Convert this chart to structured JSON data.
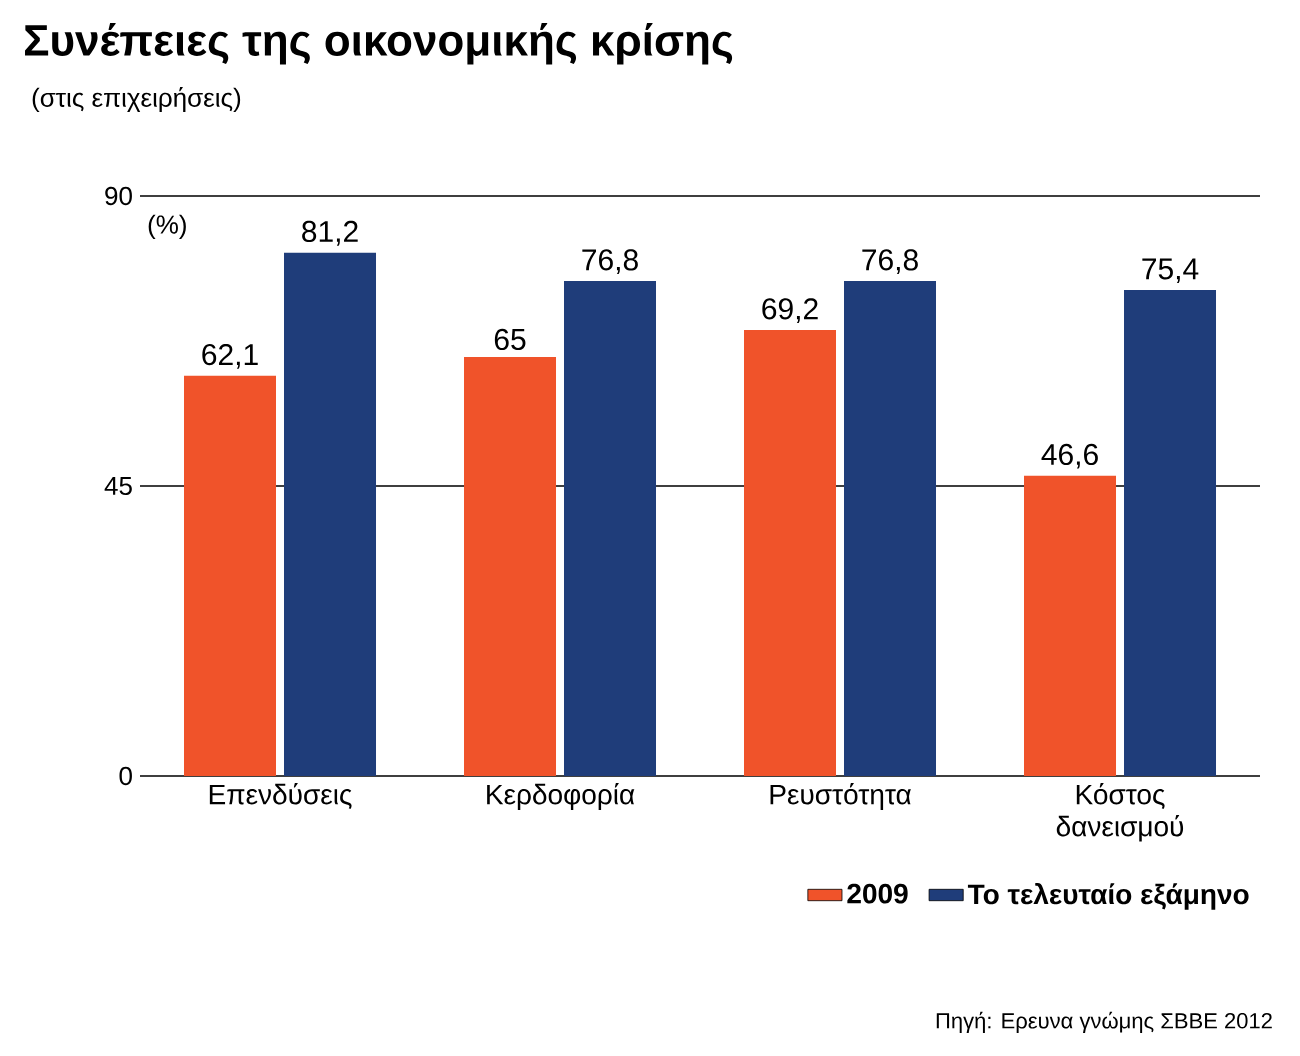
{
  "chart_data": {
    "type": "bar",
    "title": "Συνέπειες της οικονομικής κρίσης",
    "subtitle": "(στις επιχειρήσεις)",
    "ylabel": "(%)",
    "categories": [
      "Επενδύσεις",
      "Κερδοφορία",
      "Ρευστότητα",
      "Κόστος δανεισμού"
    ],
    "series": [
      {
        "name": "2009",
        "color": "#f0532a",
        "values": [
          62.1,
          65,
          69.2,
          46.6
        ],
        "value_labels": [
          "62,1",
          "65",
          "69,2",
          "46,6"
        ]
      },
      {
        "name": "Το τελευταίο εξάμηνο",
        "color": "#1f3d7a",
        "values": [
          81.2,
          76.8,
          76.8,
          75.4
        ],
        "value_labels": [
          "81,2",
          "76,8",
          "76,8",
          "75,4"
        ]
      }
    ],
    "ylim": [
      0,
      90
    ],
    "yticks": [
      0,
      45,
      90
    ],
    "grid": "y",
    "legend": "bottom right",
    "annotations": [
      "Πηγή: Ερευνα γνώμης ΣΒΒΕ 2012"
    ]
  }
}
